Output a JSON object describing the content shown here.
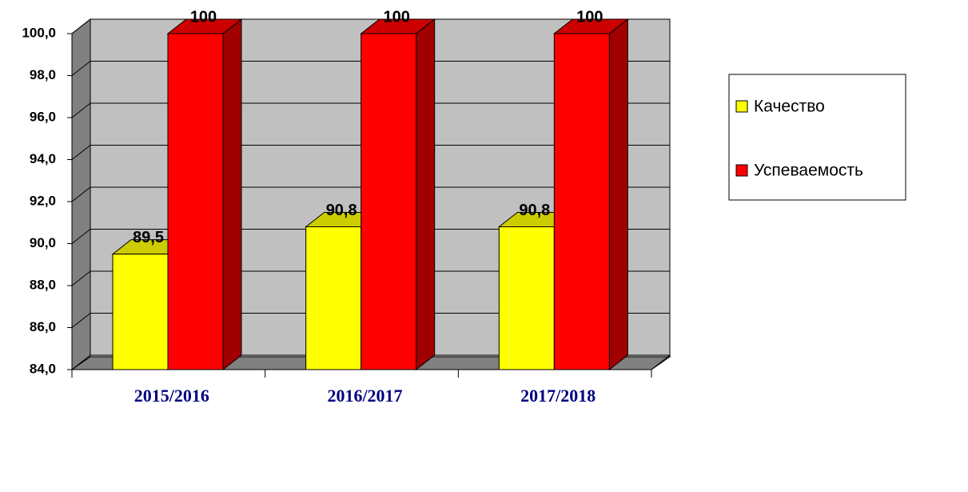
{
  "chart_data": {
    "type": "bar3d",
    "categories": [
      "2015/2016",
      "2016/2017",
      "2017/2018"
    ],
    "series": [
      {
        "name": "Качество",
        "color": "#ffff00",
        "values": [
          89.5,
          90.8,
          90.8
        ],
        "value_labels": [
          "89,5",
          "90,8",
          "90,8"
        ]
      },
      {
        "name": "Успеваемость",
        "color": "#ff0000",
        "values": [
          100,
          100,
          100
        ],
        "value_labels": [
          "100",
          "100",
          "100"
        ]
      }
    ],
    "ylim": [
      84,
      100
    ],
    "yticks": [
      {
        "value": 84,
        "label": "84,0"
      },
      {
        "value": 86,
        "label": "86,0"
      },
      {
        "value": 88,
        "label": "88,0"
      },
      {
        "value": 90,
        "label": "90,0"
      },
      {
        "value": 92,
        "label": "92,0"
      },
      {
        "value": 94,
        "label": "94,0"
      },
      {
        "value": 96,
        "label": "96,0"
      },
      {
        "value": 98,
        "label": "98,0"
      },
      {
        "value": 100,
        "label": "100,0"
      }
    ],
    "grid": true
  }
}
